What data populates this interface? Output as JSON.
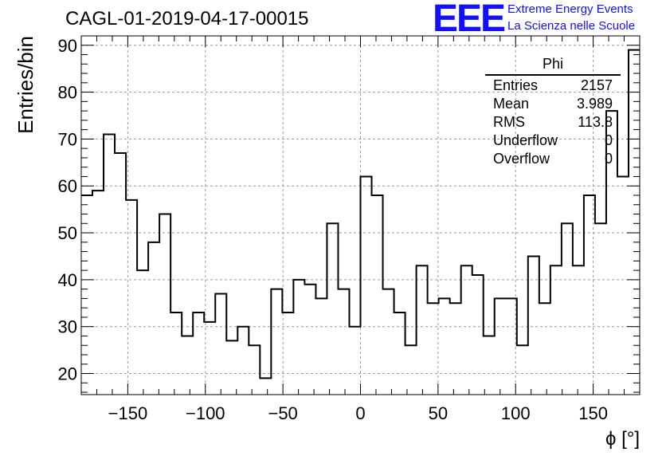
{
  "header": {
    "title": "CAGL-01-2019-04-17-00015",
    "logo_text": "EEE",
    "logo_line1": "Extreme Energy Events",
    "logo_line2": "La Scienza nelle Scuole"
  },
  "stats_box": {
    "name": "Phi",
    "rows": [
      {
        "label": "Entries",
        "value": "2157"
      },
      {
        "label": "Mean",
        "value": "3.989"
      },
      {
        "label": "RMS",
        "value": "113.8"
      },
      {
        "label": "Underflow",
        "value": "0"
      },
      {
        "label": "Overflow",
        "value": "0"
      }
    ]
  },
  "chart_data": {
    "type": "histogram",
    "title": "CAGL-01-2019-04-17-00015",
    "xlabel": "ϕ [°]",
    "ylabel": "Entries/bin",
    "xlim": [
      -180,
      180
    ],
    "ylim": [
      15.5,
      92
    ],
    "x_ticks": [
      -150,
      -100,
      -50,
      0,
      50,
      100,
      150
    ],
    "y_ticks": [
      20,
      30,
      40,
      50,
      60,
      70,
      80,
      90
    ],
    "grid": true,
    "bin_width": 7.2,
    "bin_edges_start": -180,
    "values": [
      58,
      59,
      71,
      67,
      57,
      42,
      48,
      54,
      33,
      28,
      33,
      31,
      37,
      27,
      30,
      26,
      19,
      38,
      33,
      40,
      39,
      36,
      52,
      38,
      30,
      62,
      58,
      38,
      33,
      26,
      43,
      35,
      36,
      35,
      43,
      41,
      28,
      36,
      36,
      26,
      45,
      35,
      43,
      52,
      43,
      58,
      52,
      76,
      62,
      89
    ]
  }
}
